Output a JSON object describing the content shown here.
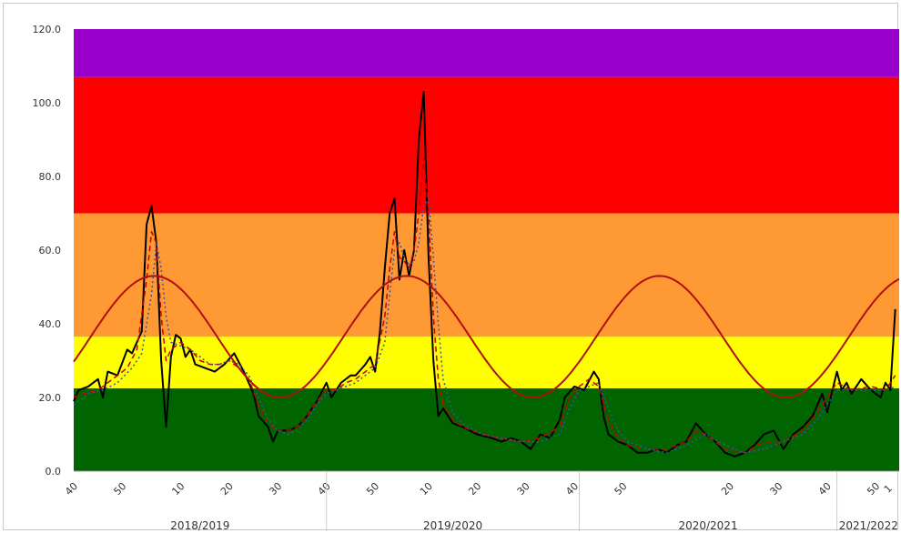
{
  "chart_data": {
    "type": "line",
    "ylim": [
      0,
      120
    ],
    "y_ticks": [
      "0.0",
      "20.0",
      "40.0",
      "60.0",
      "80.0",
      "100.0",
      "120.0"
    ],
    "grid": false,
    "legend": "none",
    "bands": [
      {
        "from": 0,
        "to": 22.5,
        "color": "#006400"
      },
      {
        "from": 22.5,
        "to": 36.5,
        "color": "#ffff00"
      },
      {
        "from": 36.5,
        "to": 70,
        "color": "#ff9933"
      },
      {
        "from": 70,
        "to": 107,
        "color": "#ff0000"
      },
      {
        "from": 107,
        "to": 120,
        "color": "#9900cc"
      }
    ],
    "x_ticks": [
      {
        "i": 0,
        "label": "40"
      },
      {
        "i": 10,
        "label": "50"
      },
      {
        "i": 22,
        "label": "10"
      },
      {
        "i": 32,
        "label": "20"
      },
      {
        "i": 42,
        "label": "30"
      },
      {
        "i": 52,
        "label": "40"
      },
      {
        "i": 62,
        "label": "50"
      },
      {
        "i": 73,
        "label": "10"
      },
      {
        "i": 83,
        "label": "20"
      },
      {
        "i": 93,
        "label": "30"
      },
      {
        "i": 103,
        "label": "40"
      },
      {
        "i": 113,
        "label": "50"
      },
      {
        "i": 135,
        "label": "20"
      },
      {
        "i": 145,
        "label": "30"
      },
      {
        "i": 155,
        "label": "40"
      },
      {
        "i": 165,
        "label": "50"
      },
      {
        "i": 168,
        "label": "1"
      }
    ],
    "seasons": [
      {
        "label": "2018/2019",
        "from": 0,
        "to": 52
      },
      {
        "label": "2019/2020",
        "from": 52,
        "to": 104
      },
      {
        "label": "2020/2021",
        "from": 104,
        "to": 157
      },
      {
        "label": "2021/2022",
        "from": 157,
        "to": 170
      }
    ],
    "series": [
      {
        "style": "solid",
        "color": "#000000",
        "points": [
          [
            0,
            19
          ],
          [
            1,
            22
          ],
          [
            3,
            23
          ],
          [
            5,
            25
          ],
          [
            6,
            20
          ],
          [
            7,
            27
          ],
          [
            9,
            26
          ],
          [
            11,
            33
          ],
          [
            12,
            32
          ],
          [
            14,
            38
          ],
          [
            15,
            67
          ],
          [
            16,
            72
          ],
          [
            17,
            62
          ],
          [
            18,
            30
          ],
          [
            19,
            12
          ],
          [
            20,
            31
          ],
          [
            21,
            37
          ],
          [
            22,
            36
          ],
          [
            23,
            31
          ],
          [
            24,
            33
          ],
          [
            25,
            29
          ],
          [
            27,
            28
          ],
          [
            29,
            27
          ],
          [
            31,
            29
          ],
          [
            33,
            32
          ],
          [
            35,
            27
          ],
          [
            37,
            21
          ],
          [
            38,
            15
          ],
          [
            40,
            12
          ],
          [
            41,
            8
          ],
          [
            42,
            11
          ],
          [
            44,
            11
          ],
          [
            46,
            12
          ],
          [
            48,
            15
          ],
          [
            50,
            19
          ],
          [
            52,
            24
          ],
          [
            53,
            20
          ],
          [
            55,
            24
          ],
          [
            57,
            26
          ],
          [
            58,
            26
          ],
          [
            60,
            29
          ],
          [
            61,
            31
          ],
          [
            62,
            27
          ],
          [
            63,
            38
          ],
          [
            64,
            55
          ],
          [
            65,
            70
          ],
          [
            66,
            74
          ],
          [
            67,
            52
          ],
          [
            68,
            60
          ],
          [
            69,
            53
          ],
          [
            70,
            60
          ],
          [
            71,
            90
          ],
          [
            72,
            103
          ],
          [
            73,
            58
          ],
          [
            74,
            30
          ],
          [
            75,
            15
          ],
          [
            76,
            17
          ],
          [
            78,
            13
          ],
          [
            80,
            12
          ],
          [
            83,
            10
          ],
          [
            86,
            9
          ],
          [
            88,
            8
          ],
          [
            90,
            9
          ],
          [
            92,
            8
          ],
          [
            94,
            6
          ],
          [
            96,
            10
          ],
          [
            98,
            9
          ],
          [
            100,
            14
          ],
          [
            101,
            20
          ],
          [
            103,
            23
          ],
          [
            105,
            22
          ],
          [
            107,
            27
          ],
          [
            108,
            25
          ],
          [
            109,
            15
          ],
          [
            110,
            10
          ],
          [
            112,
            8
          ],
          [
            114,
            7
          ],
          [
            116,
            5
          ],
          [
            118,
            5
          ],
          [
            120,
            6
          ],
          [
            122,
            5
          ],
          [
            124,
            7
          ],
          [
            126,
            8
          ],
          [
            128,
            13
          ],
          [
            130,
            10
          ],
          [
            132,
            8
          ],
          [
            134,
            5
          ],
          [
            136,
            4
          ],
          [
            138,
            5
          ],
          [
            140,
            7
          ],
          [
            142,
            10
          ],
          [
            144,
            11
          ],
          [
            146,
            6
          ],
          [
            148,
            10
          ],
          [
            150,
            12
          ],
          [
            152,
            15
          ],
          [
            154,
            21
          ],
          [
            155,
            16
          ],
          [
            157,
            27
          ],
          [
            158,
            22
          ],
          [
            159,
            24
          ],
          [
            160,
            21
          ],
          [
            162,
            25
          ],
          [
            164,
            22
          ],
          [
            166,
            20
          ],
          [
            167,
            24
          ],
          [
            168,
            22
          ],
          [
            169,
            44
          ]
        ]
      },
      {
        "style": "dash",
        "color": "#cc0000",
        "points": [
          [
            0,
            20
          ],
          [
            2,
            21
          ],
          [
            5,
            22
          ],
          [
            8,
            25
          ],
          [
            11,
            28
          ],
          [
            13,
            33
          ],
          [
            15,
            52
          ],
          [
            16,
            65
          ],
          [
            17,
            62
          ],
          [
            18,
            42
          ],
          [
            19,
            30
          ],
          [
            20,
            33
          ],
          [
            22,
            35
          ],
          [
            24,
            33
          ],
          [
            26,
            30
          ],
          [
            28,
            29
          ],
          [
            30,
            29
          ],
          [
            32,
            30
          ],
          [
            34,
            28
          ],
          [
            36,
            25
          ],
          [
            38,
            18
          ],
          [
            40,
            13
          ],
          [
            42,
            11
          ],
          [
            44,
            11
          ],
          [
            46,
            12
          ],
          [
            48,
            15
          ],
          [
            50,
            19
          ],
          [
            52,
            22
          ],
          [
            54,
            22
          ],
          [
            56,
            24
          ],
          [
            58,
            25
          ],
          [
            60,
            27
          ],
          [
            62,
            29
          ],
          [
            64,
            42
          ],
          [
            65,
            55
          ],
          [
            66,
            65
          ],
          [
            67,
            58
          ],
          [
            68,
            57
          ],
          [
            69,
            55
          ],
          [
            70,
            60
          ],
          [
            71,
            70
          ],
          [
            72,
            85
          ],
          [
            73,
            70
          ],
          [
            74,
            42
          ],
          [
            75,
            25
          ],
          [
            76,
            18
          ],
          [
            78,
            14
          ],
          [
            80,
            12
          ],
          [
            84,
            10
          ],
          [
            88,
            9
          ],
          [
            92,
            8
          ],
          [
            96,
            9
          ],
          [
            100,
            12
          ],
          [
            102,
            20
          ],
          [
            104,
            23
          ],
          [
            106,
            25
          ],
          [
            108,
            23
          ],
          [
            110,
            14
          ],
          [
            112,
            9
          ],
          [
            114,
            7
          ],
          [
            118,
            6
          ],
          [
            122,
            6
          ],
          [
            126,
            8
          ],
          [
            128,
            11
          ],
          [
            130,
            10
          ],
          [
            132,
            8
          ],
          [
            134,
            6
          ],
          [
            138,
            5
          ],
          [
            142,
            8
          ],
          [
            146,
            8
          ],
          [
            150,
            11
          ],
          [
            153,
            16
          ],
          [
            155,
            20
          ],
          [
            157,
            24
          ],
          [
            160,
            22
          ],
          [
            164,
            23
          ],
          [
            167,
            22
          ],
          [
            169,
            26
          ]
        ]
      },
      {
        "style": "dot",
        "color": "#3355aa",
        "points": [
          [
            0,
            18
          ],
          [
            3,
            21
          ],
          [
            6,
            22
          ],
          [
            9,
            24
          ],
          [
            12,
            28
          ],
          [
            14,
            32
          ],
          [
            16,
            48
          ],
          [
            17,
            62
          ],
          [
            18,
            55
          ],
          [
            19,
            42
          ],
          [
            20,
            35
          ],
          [
            22,
            34
          ],
          [
            24,
            33
          ],
          [
            26,
            31
          ],
          [
            28,
            29
          ],
          [
            30,
            29
          ],
          [
            32,
            30
          ],
          [
            34,
            29
          ],
          [
            36,
            26
          ],
          [
            38,
            20
          ],
          [
            40,
            14
          ],
          [
            42,
            11
          ],
          [
            44,
            10
          ],
          [
            46,
            11
          ],
          [
            48,
            14
          ],
          [
            50,
            18
          ],
          [
            52,
            21
          ],
          [
            54,
            22
          ],
          [
            56,
            23
          ],
          [
            58,
            24
          ],
          [
            60,
            26
          ],
          [
            62,
            28
          ],
          [
            64,
            35
          ],
          [
            65,
            48
          ],
          [
            66,
            60
          ],
          [
            67,
            62
          ],
          [
            68,
            58
          ],
          [
            69,
            56
          ],
          [
            70,
            57
          ],
          [
            71,
            62
          ],
          [
            72,
            72
          ],
          [
            73,
            74
          ],
          [
            74,
            58
          ],
          [
            75,
            40
          ],
          [
            76,
            25
          ],
          [
            78,
            16
          ],
          [
            80,
            13
          ],
          [
            84,
            10
          ],
          [
            88,
            9
          ],
          [
            92,
            8
          ],
          [
            96,
            8
          ],
          [
            100,
            10
          ],
          [
            102,
            17
          ],
          [
            104,
            22
          ],
          [
            106,
            23
          ],
          [
            108,
            24
          ],
          [
            110,
            17
          ],
          [
            112,
            11
          ],
          [
            114,
            8
          ],
          [
            118,
            6
          ],
          [
            122,
            5
          ],
          [
            126,
            7
          ],
          [
            130,
            10
          ],
          [
            134,
            7
          ],
          [
            138,
            5
          ],
          [
            142,
            6
          ],
          [
            146,
            8
          ],
          [
            150,
            10
          ],
          [
            153,
            14
          ],
          [
            155,
            18
          ],
          [
            157,
            22
          ],
          [
            160,
            22
          ],
          [
            164,
            22
          ],
          [
            167,
            22
          ],
          [
            169,
            23
          ]
        ]
      },
      {
        "style": "solid",
        "color": "#b01010",
        "fn": "baseline",
        "center": 36.5,
        "amp": 16.5,
        "period": 52,
        "peak_at": 16.5
      }
    ]
  }
}
